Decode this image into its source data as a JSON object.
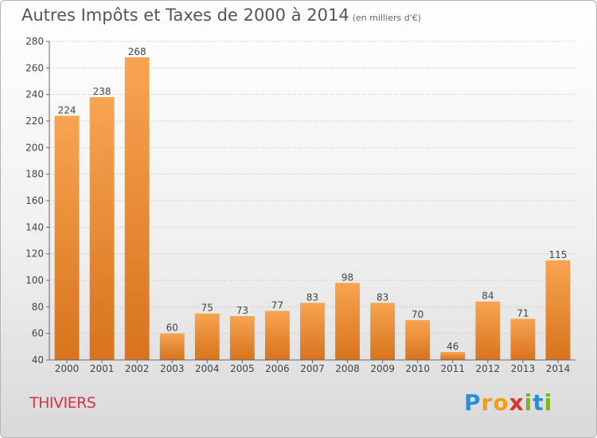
{
  "title": "Autres Impôts et Taxes de 2000 à 2014",
  "subtitle": "(en milliers d'€)",
  "place": "THIVIERS",
  "logo": {
    "letters": [
      "P",
      "r",
      "o",
      "x",
      "i",
      "t",
      "i"
    ],
    "colors": [
      "#2a8fd8",
      "#f39c12",
      "#f39c12",
      "#e0312b",
      "#7ab51d",
      "#2a8fd8",
      "#7ab51d"
    ]
  },
  "chart_data": {
    "type": "bar",
    "categories": [
      "2000",
      "2001",
      "2002",
      "2003",
      "2004",
      "2005",
      "2006",
      "2007",
      "2008",
      "2009",
      "2010",
      "2011",
      "2012",
      "2013",
      "2014"
    ],
    "values": [
      224,
      238,
      268,
      60,
      75,
      73,
      77,
      83,
      98,
      83,
      70,
      46,
      84,
      71,
      115
    ],
    "title": "Autres Impôts et Taxes de 2000 à 2014",
    "ylim": [
      40,
      280
    ],
    "yticks": [
      40,
      60,
      80,
      100,
      120,
      140,
      160,
      180,
      200,
      220,
      240,
      260,
      280
    ],
    "grid": true,
    "bar_color": "#f2963a"
  }
}
